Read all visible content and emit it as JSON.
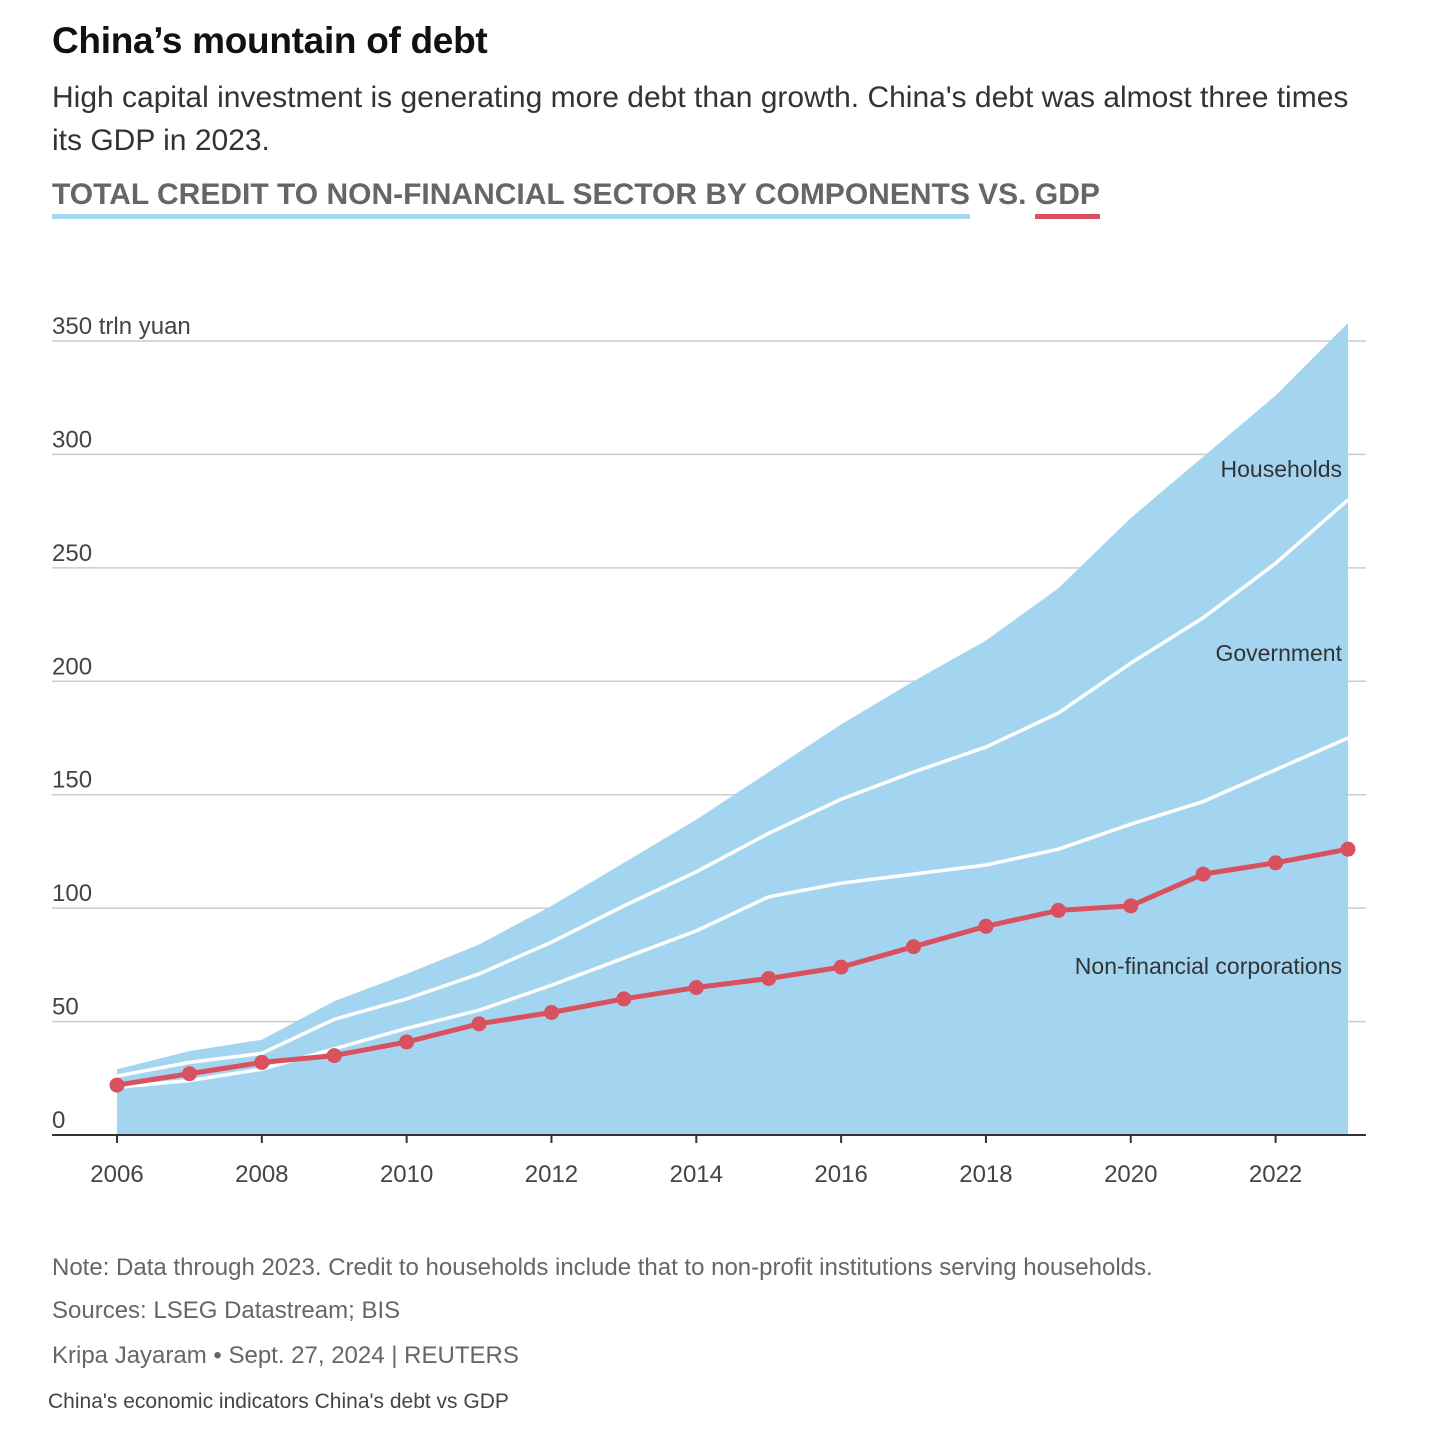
{
  "header": {
    "title": "China’s mountain of debt",
    "subtitle": "High capital investment is generating more debt than growth. China's debt was almost three times its GDP in 2023.",
    "chart_heading_part1": "TOTAL CREDIT TO NON-FINANCIAL SECTOR BY COMPONENTS",
    "chart_heading_vs": " VS. ",
    "chart_heading_part2": "GDP"
  },
  "footer": {
    "note": "Note: Data through 2023. Credit to households include that to non-profit institutions serving households.",
    "sources": "Sources: LSEG Datastream; BIS",
    "byline": "Kripa Jayaram • Sept. 27, 2024 | REUTERS",
    "caption": "China's economic indicators China's debt vs GDP"
  },
  "colors": {
    "area": "#a3d5f1",
    "boundary": "#ffffff",
    "gdp": "#d9505f",
    "grid": "#cccccc",
    "axis": "#333333",
    "underline_blue": "#a8d8f0"
  },
  "chart_data": {
    "type": "area",
    "stacked": true,
    "ylabel": "trln yuan",
    "ylim": [
      0,
      350
    ],
    "yticks": [
      0,
      50,
      100,
      150,
      200,
      250,
      300,
      350
    ],
    "ytick_labels": [
      "0",
      "50",
      "100",
      "150",
      "200",
      "250",
      "300",
      "350 trln yuan"
    ],
    "xticks": [
      2006,
      2008,
      2010,
      2012,
      2014,
      2016,
      2018,
      2020,
      2022
    ],
    "x": [
      2006,
      2007,
      2008,
      2009,
      2010,
      2011,
      2012,
      2013,
      2014,
      2015,
      2016,
      2017,
      2018,
      2019,
      2020,
      2021,
      2022,
      2023
    ],
    "series": [
      {
        "name": "Non-financial corporations",
        "values": [
          21,
          24,
          29,
          38,
          47,
          55,
          66,
          78,
          90,
          105,
          111,
          115,
          119,
          126,
          137,
          147,
          161,
          175
        ]
      },
      {
        "name": "Government",
        "values": [
          26,
          32,
          36,
          51,
          60,
          71,
          85,
          101,
          116,
          133,
          148,
          160,
          171,
          186,
          208,
          228,
          252,
          280
        ]
      },
      {
        "name": "Households",
        "values": [
          29,
          37,
          42,
          59,
          71,
          84,
          101,
          120,
          139,
          160,
          181,
          200,
          218,
          241,
          272,
          299,
          326,
          358
        ]
      }
    ],
    "series_labels": [
      {
        "text": "Non-financial corporations",
        "x": 2023,
        "y": 71
      },
      {
        "text": "Government",
        "x": 2023,
        "y": 209
      },
      {
        "text": "Households",
        "x": 2023,
        "y": 290
      }
    ],
    "gdp": {
      "name": "GDP",
      "values": [
        22,
        27,
        32,
        35,
        41,
        49,
        54,
        60,
        65,
        69,
        74,
        83,
        92,
        99,
        101,
        115,
        120,
        126
      ]
    },
    "grid": true
  }
}
